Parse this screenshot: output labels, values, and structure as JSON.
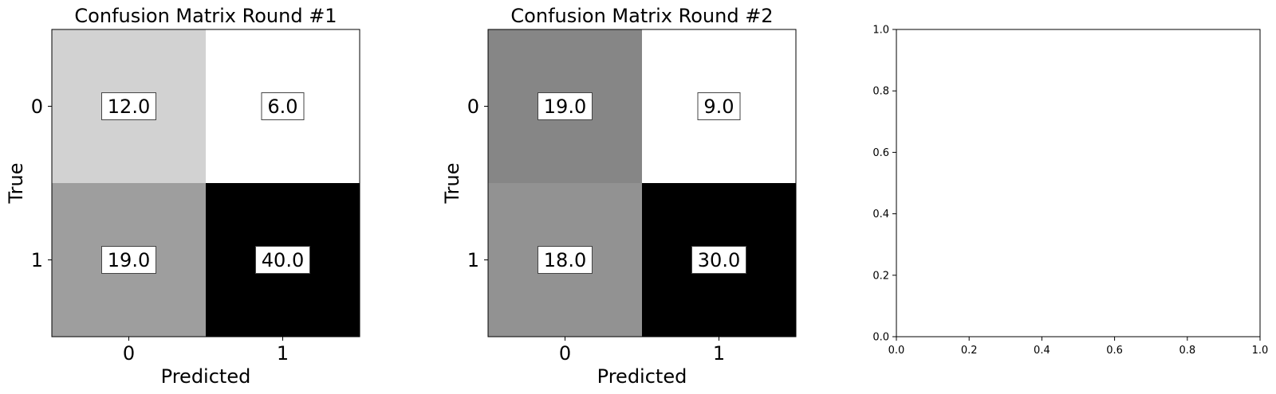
{
  "chart_data": [
    {
      "type": "heatmap",
      "title": "Confusion Matrix Round #1",
      "xlabel": "Predicted",
      "ylabel": "True",
      "x_tick_labels": [
        "0",
        "1"
      ],
      "y_tick_labels": [
        "0",
        "1"
      ],
      "values": [
        [
          12.0,
          6.0
        ],
        [
          19.0,
          40.0
        ]
      ],
      "value_labels": [
        [
          "12.0",
          "6.0"
        ],
        [
          "19.0",
          "40.0"
        ]
      ],
      "colormap": "gray_r"
    },
    {
      "type": "heatmap",
      "title": "Confusion Matrix Round #2",
      "xlabel": "Predicted",
      "ylabel": "True",
      "x_tick_labels": [
        "0",
        "1"
      ],
      "y_tick_labels": [
        "0",
        "1"
      ],
      "values": [
        [
          19.0,
          9.0
        ],
        [
          18.0,
          30.0
        ]
      ],
      "value_labels": [
        [
          "19.0",
          "9.0"
        ],
        [
          "18.0",
          "30.0"
        ]
      ],
      "colormap": "gray_r"
    },
    {
      "type": "scatter",
      "title": "",
      "xlabel": "",
      "ylabel": "",
      "xlim": [
        0.0,
        1.0
      ],
      "ylim": [
        0.0,
        1.0
      ],
      "x_tick_labels": [
        "0.0",
        "0.2",
        "0.4",
        "0.6",
        "0.8",
        "1.0"
      ],
      "y_tick_labels": [
        "0.0",
        "0.2",
        "0.4",
        "0.6",
        "0.8",
        "1.0"
      ],
      "series": []
    }
  ]
}
